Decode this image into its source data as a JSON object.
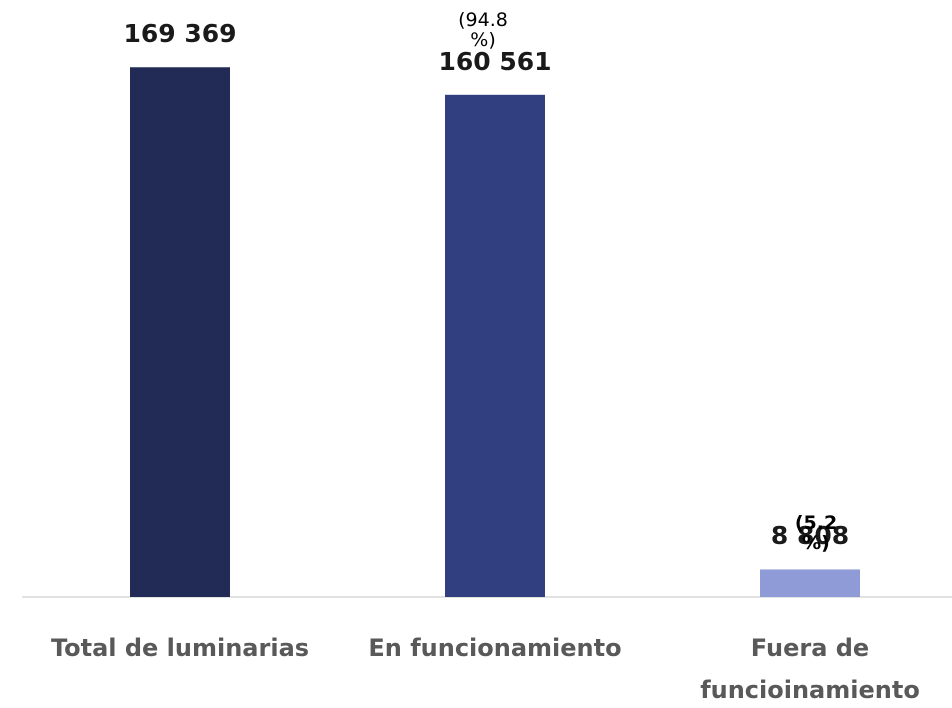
{
  "chart_data": {
    "type": "bar",
    "categories": [
      "Total de luminarias",
      "En funcionamiento",
      "Fuera de funcioinamiento"
    ],
    "values": [
      169369,
      160561,
      8808
    ],
    "value_labels": [
      "169 369",
      "160 561",
      "8 808"
    ],
    "percent_labels": [
      null,
      "(94.8 %)",
      "(5.2 %)"
    ],
    "colors": [
      "#222b55",
      "#313f80",
      "#8e9bd6"
    ],
    "ylim": [
      0,
      180000
    ]
  }
}
